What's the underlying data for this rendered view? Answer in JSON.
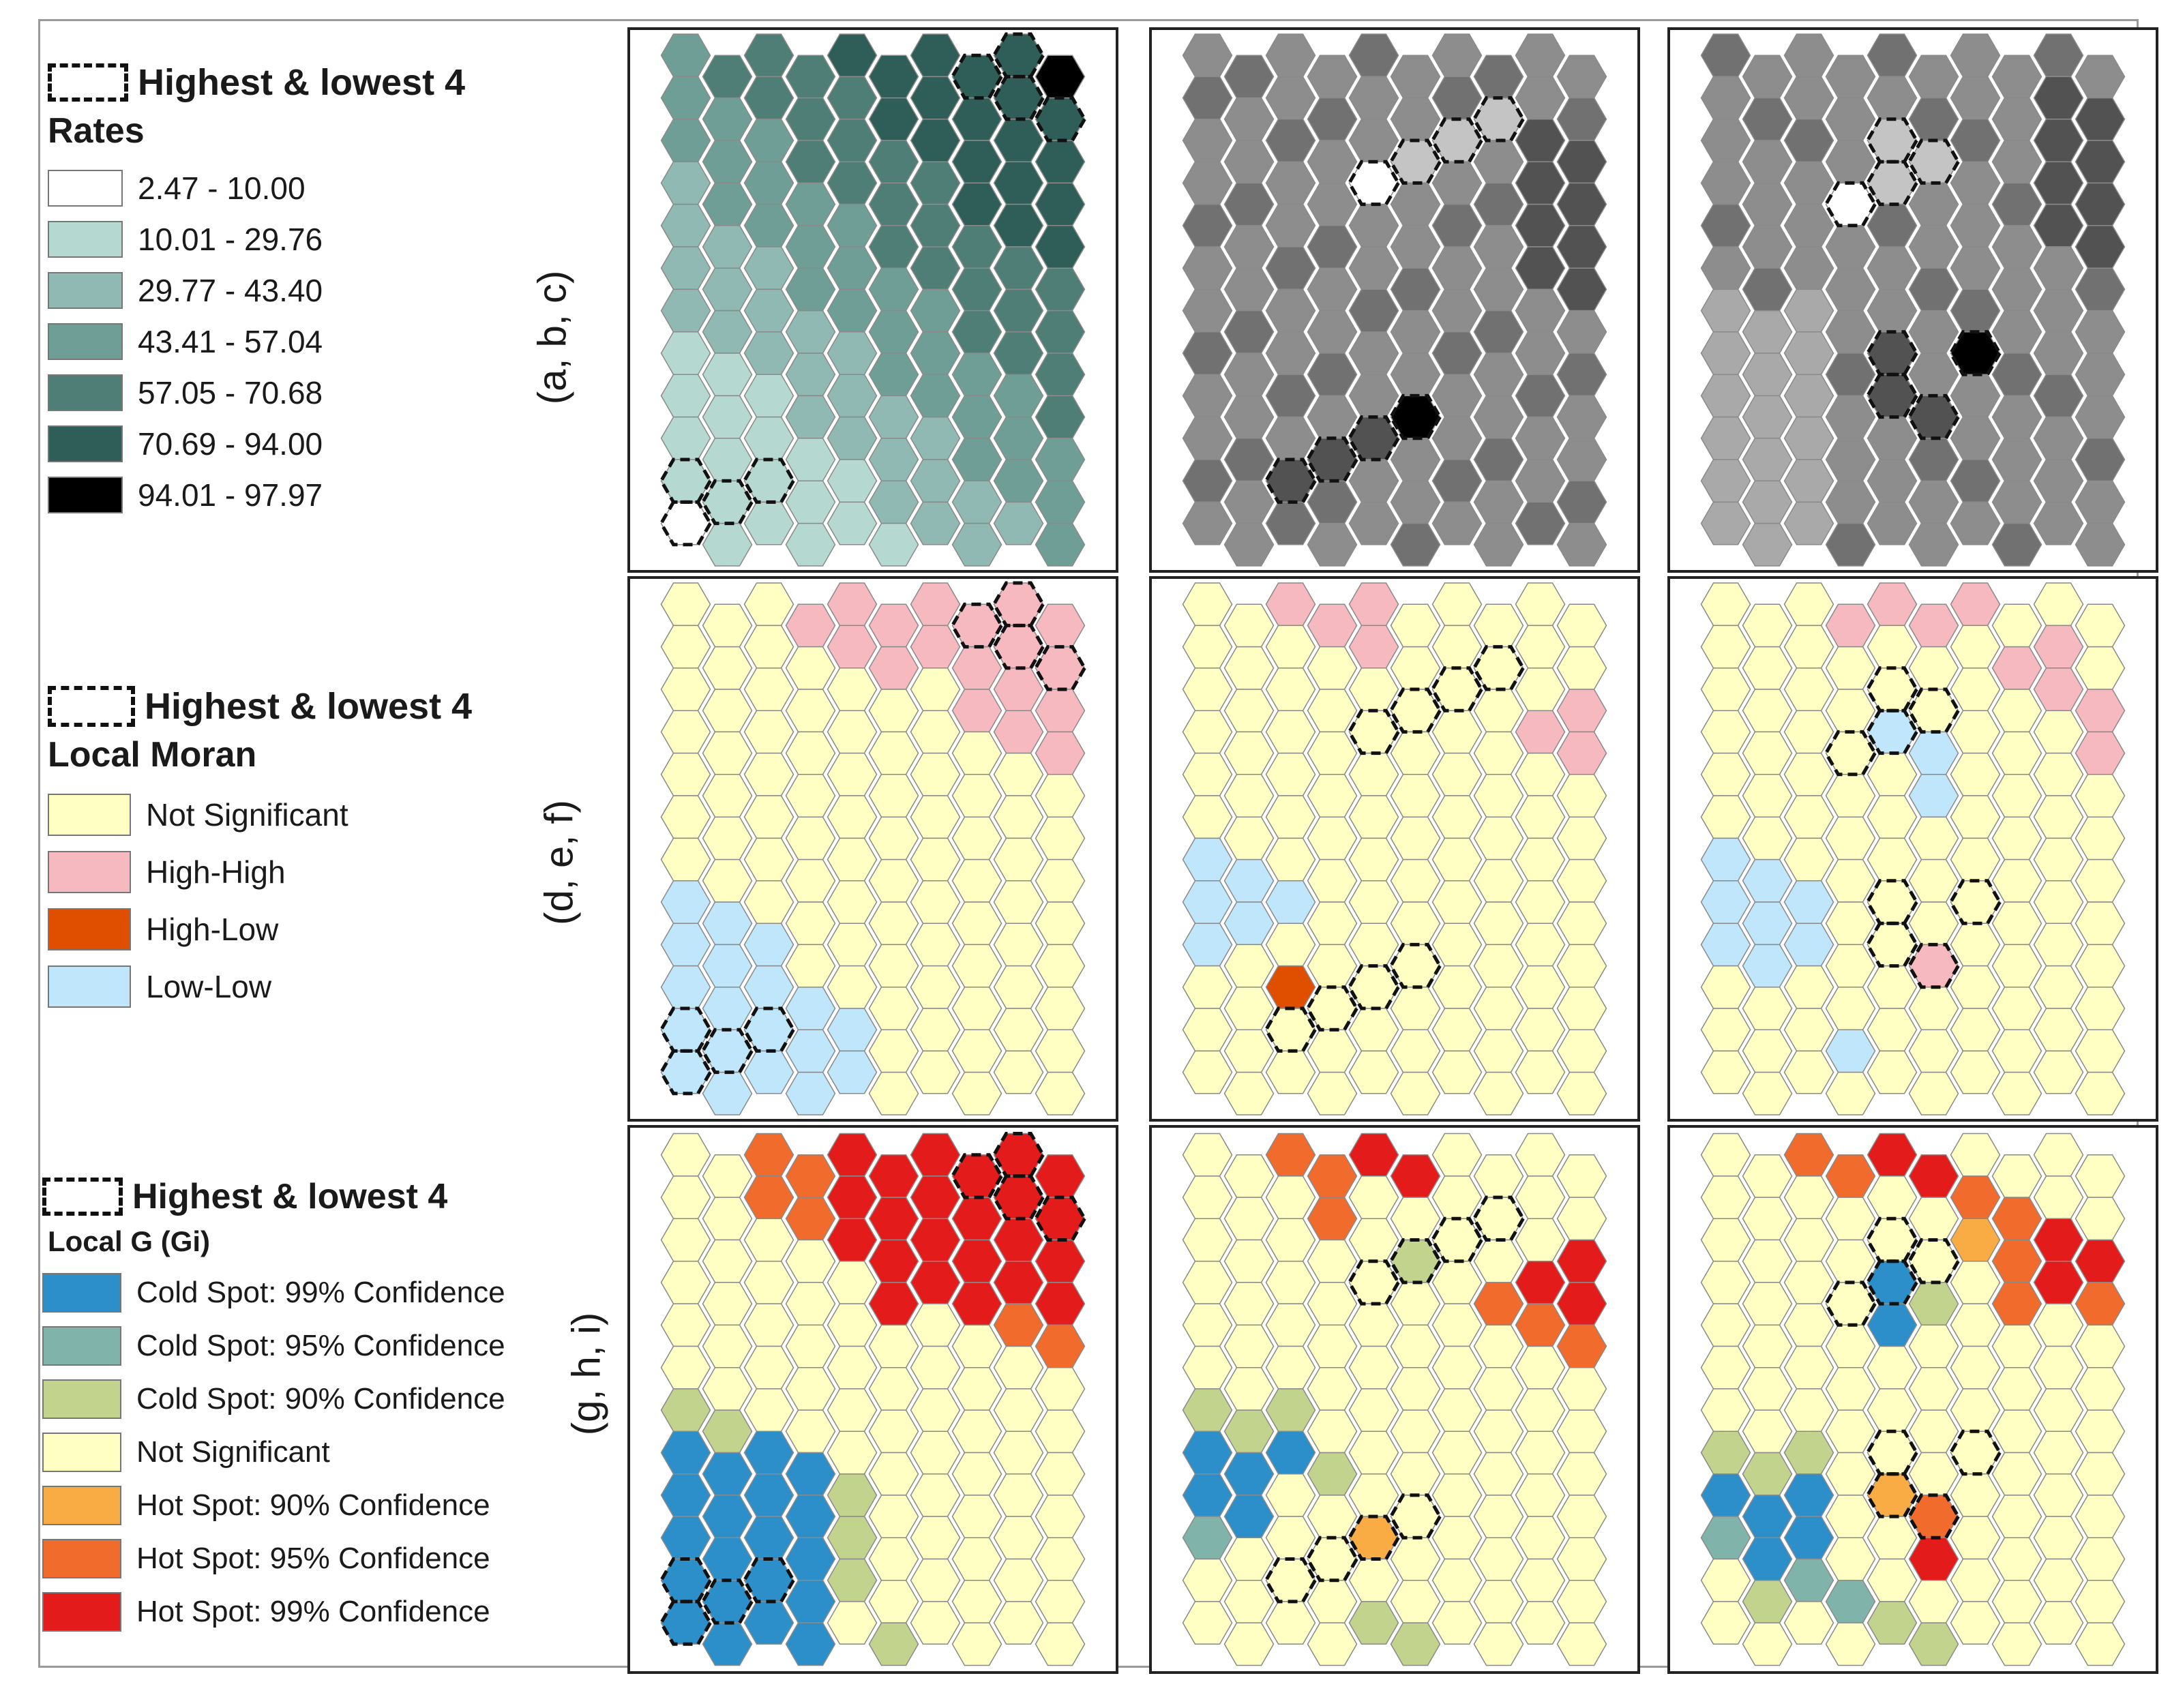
{
  "legends": {
    "rates": {
      "heading": "Highest & lowest 4",
      "title": "Rates",
      "items": [
        {
          "label": "2.47 - 10.00",
          "color": "#ffffff"
        },
        {
          "label": "10.01 - 29.76",
          "color": "#b5d8d1"
        },
        {
          "label": "29.77 - 43.40",
          "color": "#8fb9b2"
        },
        {
          "label": "43.41 - 57.04",
          "color": "#6f9e97"
        },
        {
          "label": "57.05 - 70.68",
          "color": "#4f7e77"
        },
        {
          "label": "70.69 - 94.00",
          "color": "#2f5e58"
        },
        {
          "label": "94.01 - 97.97",
          "color": "#000000"
        }
      ]
    },
    "moran": {
      "heading": "Highest & lowest 4",
      "title": "Local Moran",
      "items": [
        {
          "label": "Not Significant",
          "color": "#ffffc4"
        },
        {
          "label": "High-High",
          "color": "#f6b9bf"
        },
        {
          "label": "High-Low",
          "color": "#e04e00"
        },
        {
          "label": "Low-Low",
          "color": "#bfe6fb"
        }
      ]
    },
    "gi": {
      "heading": "Highest & lowest 4",
      "title": "Local G (Gi)",
      "items": [
        {
          "label": "Cold Spot: 99% Confidence",
          "color": "#2c8fca"
        },
        {
          "label": "Cold Spot: 95% Confidence",
          "color": "#80b3aa"
        },
        {
          "label": "Cold Spot: 90% Confidence",
          "color": "#c2d38d"
        },
        {
          "label": "Not Significant",
          "color": "#ffffc4"
        },
        {
          "label": "Hot Spot: 90% Confidence",
          "color": "#f9ab44"
        },
        {
          "label": "Hot Spot: 95% Confidence",
          "color": "#f06b2c"
        },
        {
          "label": "Hot Spot: 99% Confidence",
          "color": "#e41b1b"
        }
      ]
    }
  },
  "row_labels": [
    "(a, b, c)",
    "(d, e, f)",
    "(g, h, i)"
  ],
  "panels": [
    {
      "id": "a",
      "scheme": "rates",
      "pattern": "rates_a"
    },
    {
      "id": "b",
      "scheme": "gray",
      "pattern": "rates_b"
    },
    {
      "id": "c",
      "scheme": "gray",
      "pattern": "rates_c"
    },
    {
      "id": "d",
      "scheme": "moran",
      "pattern": "moran_d"
    },
    {
      "id": "e",
      "scheme": "moran",
      "pattern": "moran_e"
    },
    {
      "id": "f",
      "scheme": "moran",
      "pattern": "moran_f"
    },
    {
      "id": "g",
      "scheme": "gi",
      "pattern": "gi_g"
    },
    {
      "id": "h",
      "scheme": "gi",
      "pattern": "gi_h"
    },
    {
      "id": "i",
      "scheme": "gi",
      "pattern": "gi_i"
    }
  ],
  "gray_scheme": [
    "#ffffff",
    "#c4c4c4",
    "#a9a9a9",
    "#8d8d8d",
    "#717171",
    "#525252",
    "#000000"
  ]
}
